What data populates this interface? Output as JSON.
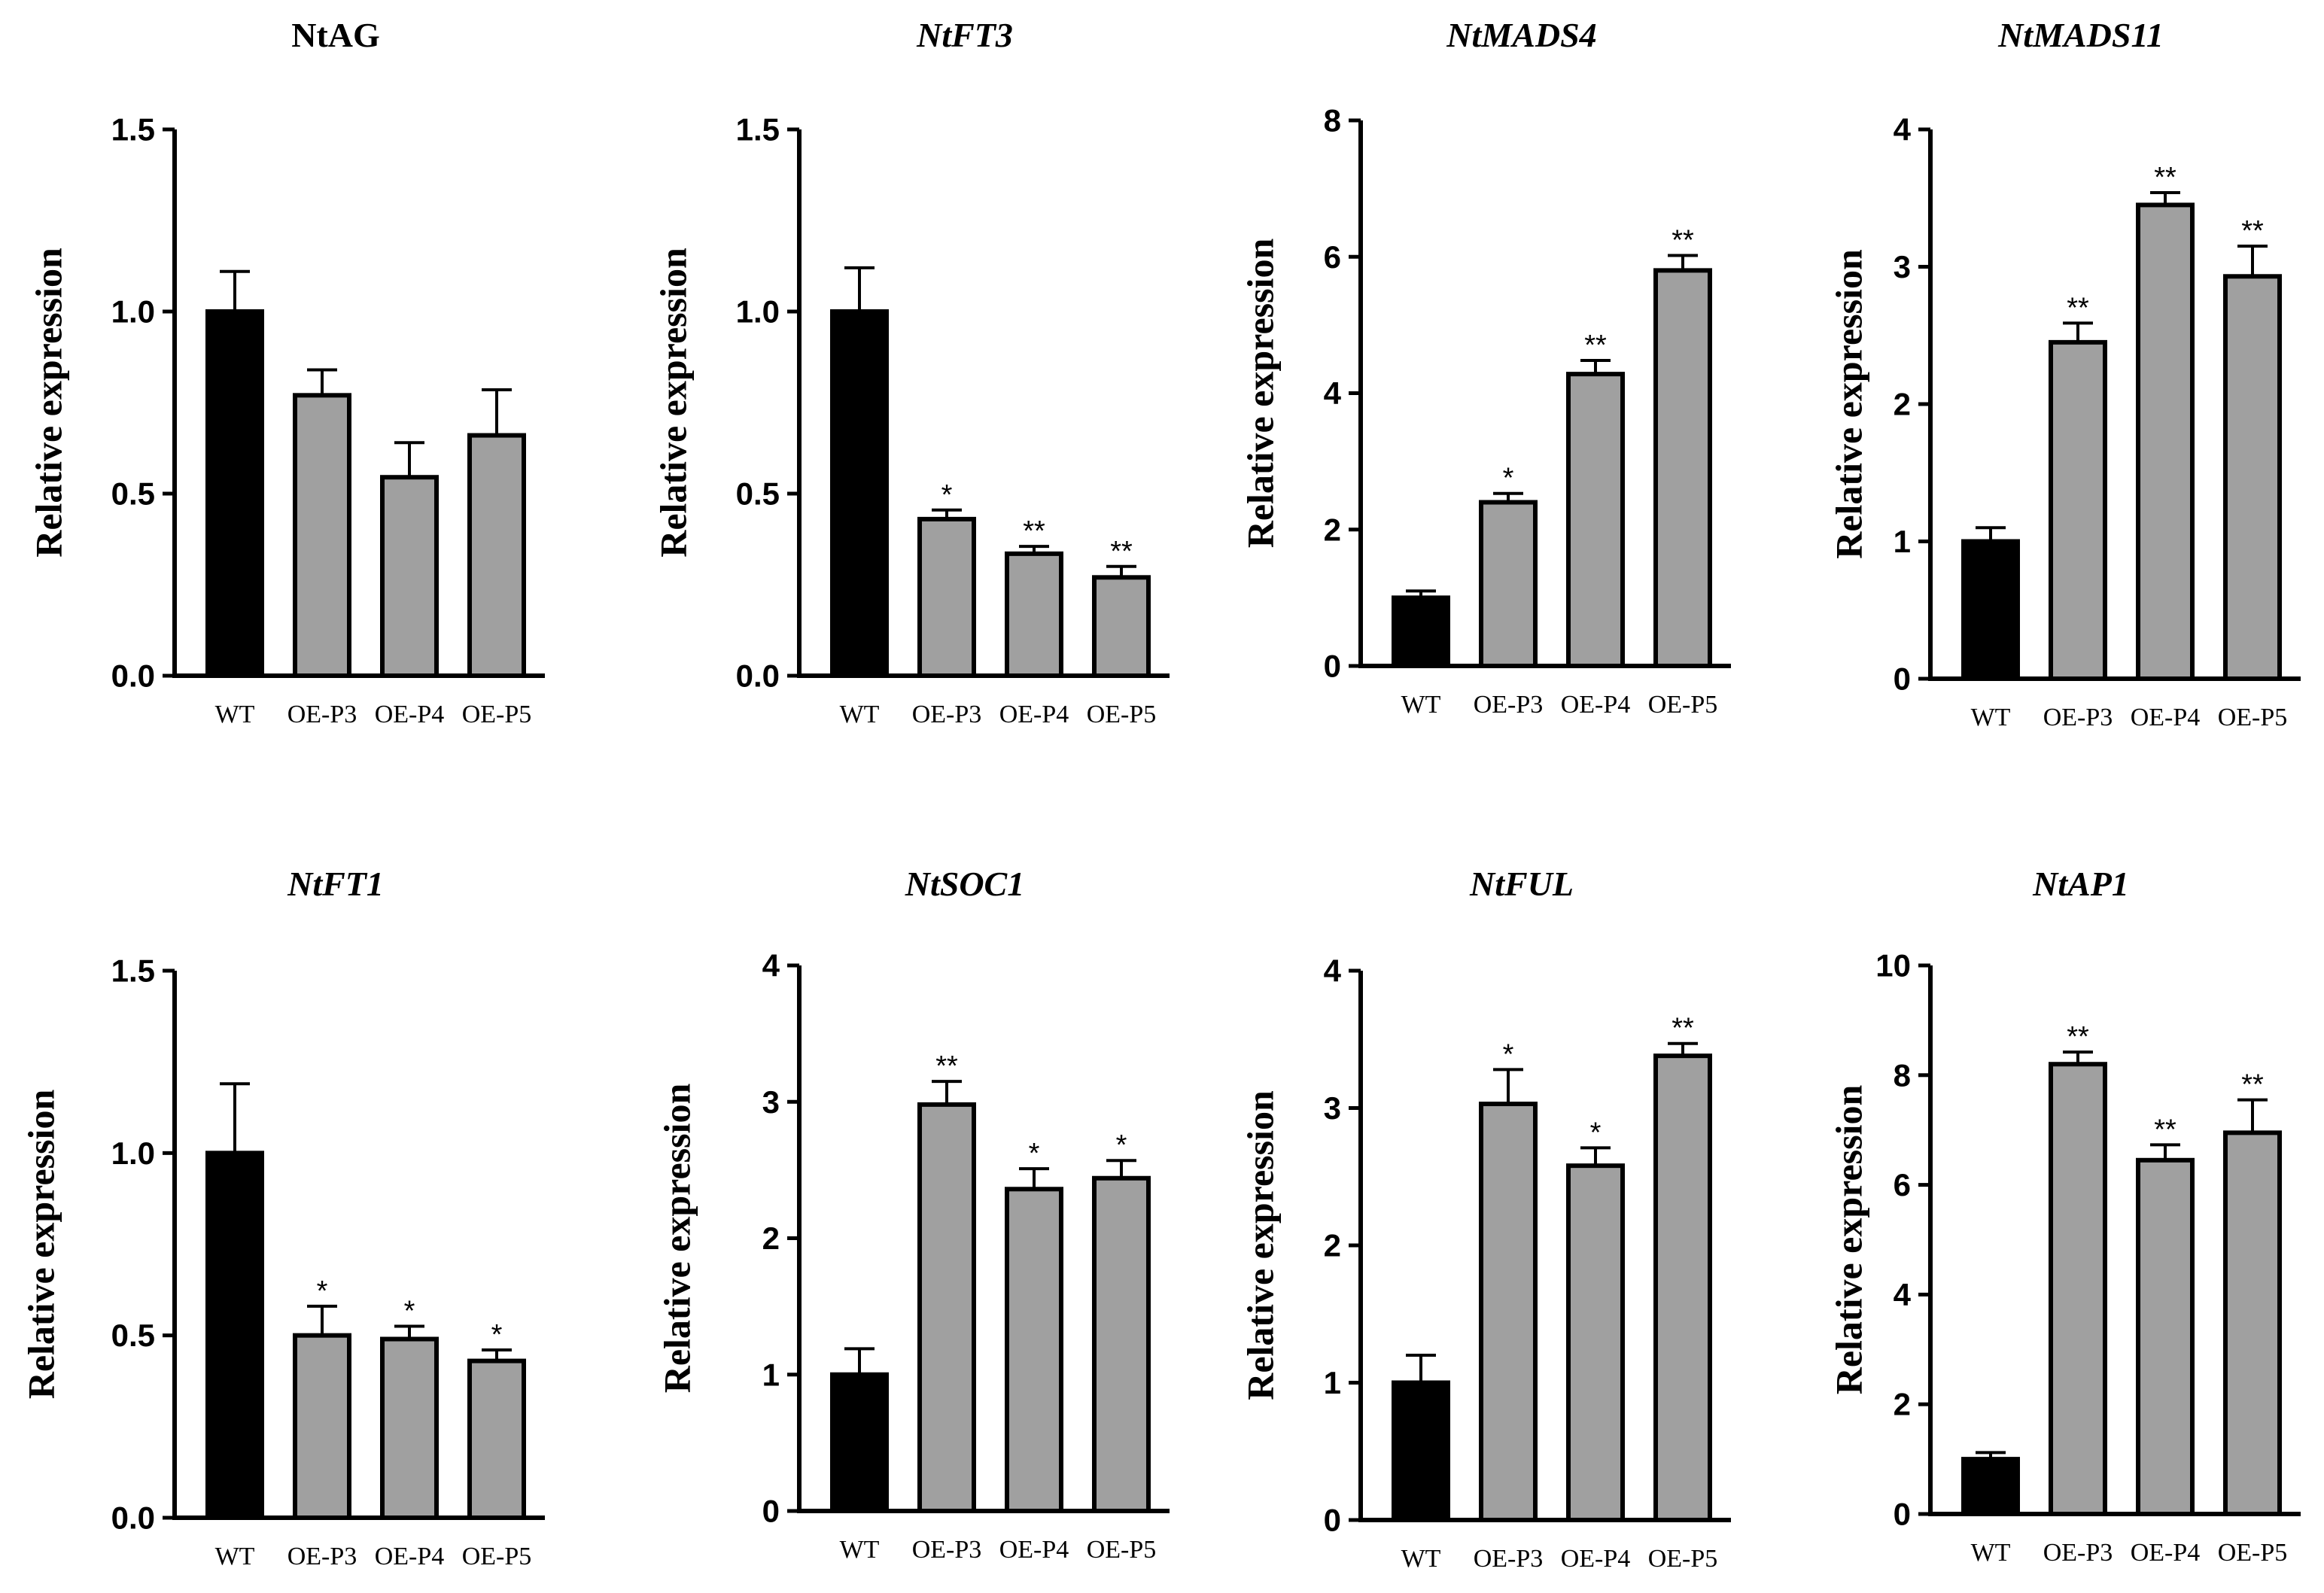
{
  "colors": {
    "wt": "#000000",
    "oe": "#a0a0a0",
    "axis": "#000000"
  },
  "chart_data": [
    {
      "type": "bar",
      "title": "NtAG",
      "title_italic": false,
      "ylabel": "Relative expression",
      "categories": [
        "WT",
        "OE-P3",
        "OE-P4",
        "OE-P5"
      ],
      "values": [
        1.0,
        0.77,
        0.545,
        0.66
      ],
      "errors": [
        0.11,
        0.07,
        0.095,
        0.125
      ],
      "significance": [
        "",
        "",
        "",
        ""
      ],
      "ylim": [
        0,
        1.5
      ],
      "ticks": [
        0.0,
        0.5,
        1.0,
        1.5
      ],
      "tick_labels": [
        "0.0",
        "0.5",
        "1.0",
        "1.5"
      ]
    },
    {
      "type": "bar",
      "title": "NtFT3",
      "title_italic": true,
      "ylabel": "Relative expression",
      "categories": [
        "WT",
        "OE-P3",
        "OE-P4",
        "OE-P5"
      ],
      "values": [
        1.0,
        0.43,
        0.335,
        0.27
      ],
      "errors": [
        0.12,
        0.025,
        0.02,
        0.03
      ],
      "significance": [
        "",
        "*",
        "**",
        "**"
      ],
      "ylim": [
        0,
        1.5
      ],
      "ticks": [
        0.0,
        0.5,
        1.0,
        1.5
      ],
      "tick_labels": [
        "0.0",
        "0.5",
        "1.0",
        "1.5"
      ]
    },
    {
      "type": "bar",
      "title": "NtMADS4",
      "title_italic": true,
      "ylabel": "Relative expression",
      "categories": [
        "WT",
        "OE-P3",
        "OE-P4",
        "OE-P5"
      ],
      "values": [
        1.0,
        2.4,
        4.28,
        5.8
      ],
      "errors": [
        0.1,
        0.13,
        0.2,
        0.22
      ],
      "significance": [
        "",
        "*",
        "**",
        "**"
      ],
      "ylim": [
        0,
        8
      ],
      "ticks": [
        0,
        2,
        4,
        6,
        8
      ],
      "tick_labels": [
        "0",
        "2",
        "4",
        "6",
        "8"
      ]
    },
    {
      "type": "bar",
      "title": "NtMADS11",
      "title_italic": true,
      "ylabel": "Relative expression",
      "categories": [
        "WT",
        "OE-P3",
        "OE-P4",
        "OE-P5"
      ],
      "values": [
        1.0,
        2.45,
        3.45,
        2.93
      ],
      "errors": [
        0.1,
        0.14,
        0.09,
        0.22
      ],
      "significance": [
        "",
        "**",
        "**",
        "**"
      ],
      "ylim": [
        0,
        4
      ],
      "ticks": [
        0,
        1,
        2,
        3,
        4
      ],
      "tick_labels": [
        "0",
        "1",
        "2",
        "3",
        "4"
      ]
    },
    {
      "type": "bar",
      "title": "NtFT1",
      "title_italic": true,
      "ylabel": "Relative expression",
      "categories": [
        "WT",
        "OE-P3",
        "OE-P4",
        "OE-P5"
      ],
      "values": [
        1.0,
        0.5,
        0.49,
        0.43
      ],
      "errors": [
        0.19,
        0.08,
        0.035,
        0.03
      ],
      "significance": [
        "",
        "*",
        "*",
        "*"
      ],
      "ylim": [
        0,
        1.5
      ],
      "ticks": [
        0.0,
        0.5,
        1.0,
        1.5
      ],
      "tick_labels": [
        "0.0",
        "0.5",
        "1.0",
        "1.5"
      ]
    },
    {
      "type": "bar",
      "title": "NtSOC1",
      "title_italic": true,
      "ylabel": "Relative expression",
      "categories": [
        "WT",
        "OE-P3",
        "OE-P4",
        "OE-P5"
      ],
      "values": [
        1.0,
        2.98,
        2.36,
        2.44
      ],
      "errors": [
        0.19,
        0.17,
        0.15,
        0.13
      ],
      "significance": [
        "",
        "**",
        "*",
        "*"
      ],
      "ylim": [
        0,
        4
      ],
      "ticks": [
        0,
        1,
        2,
        3,
        4
      ],
      "tick_labels": [
        "0",
        "1",
        "2",
        "3",
        "4"
      ]
    },
    {
      "type": "bar",
      "title": "NtFUL",
      "title_italic": true,
      "ylabel": "Relative expression",
      "categories": [
        "WT",
        "OE-P3",
        "OE-P4",
        "OE-P5"
      ],
      "values": [
        1.0,
        3.03,
        2.58,
        3.38
      ],
      "errors": [
        0.2,
        0.25,
        0.13,
        0.09
      ],
      "significance": [
        "",
        "*",
        "*",
        "**"
      ],
      "ylim": [
        0,
        4
      ],
      "ticks": [
        0,
        1,
        2,
        3,
        4
      ],
      "tick_labels": [
        "0",
        "1",
        "2",
        "3",
        "4"
      ]
    },
    {
      "type": "bar",
      "title": "NtAP1",
      "title_italic": true,
      "ylabel": "Relative expression",
      "categories": [
        "WT",
        "OE-P3",
        "OE-P4",
        "OE-P5"
      ],
      "values": [
        1.0,
        8.2,
        6.45,
        6.95
      ],
      "errors": [
        0.12,
        0.22,
        0.28,
        0.6
      ],
      "significance": [
        "",
        "**",
        "**",
        "**"
      ],
      "ylim": [
        0,
        10
      ],
      "ticks": [
        0,
        2,
        4,
        6,
        8,
        10
      ],
      "tick_labels": [
        "0",
        "2",
        "4",
        "6",
        "8",
        "10"
      ]
    }
  ]
}
